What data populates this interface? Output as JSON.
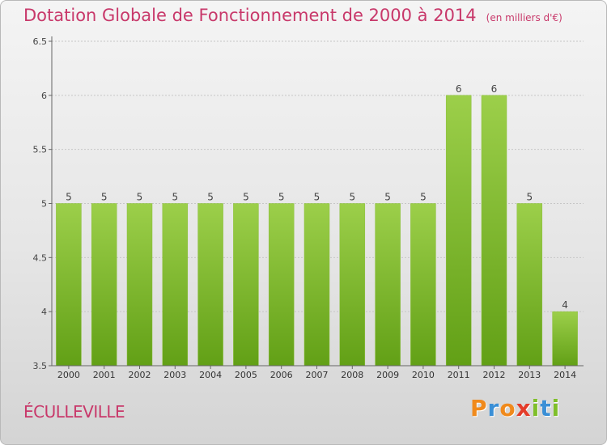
{
  "title": "Dotation Globale de Fonctionnement de 2000 à 2014",
  "subtitle": "(en milliers d'€)",
  "commune": "ÉCULLEVILLE",
  "logo": {
    "letters": [
      "P",
      "r",
      "o",
      "x",
      "i",
      "t",
      "i"
    ],
    "colors": [
      "#f08a1c",
      "#3a8fd6",
      "#f08a1c",
      "#e43c2a",
      "#7fbf2a",
      "#3a8fd6",
      "#7fbf2a"
    ]
  },
  "colors": {
    "bar_top": "#9ccf4a",
    "bar_bottom": "#62a016",
    "title": "#c8386a"
  },
  "chart_data": {
    "type": "bar",
    "title": "Dotation Globale de Fonctionnement de 2000 à 2014",
    "subtitle": "(en milliers d'€)",
    "categories": [
      "2000",
      "2001",
      "2002",
      "2003",
      "2004",
      "2005",
      "2006",
      "2007",
      "2008",
      "2009",
      "2010",
      "2011",
      "2012",
      "2013",
      "2014"
    ],
    "values": [
      5,
      5,
      5,
      5,
      5,
      5,
      5,
      5,
      5,
      5,
      5,
      6,
      6,
      5,
      4
    ],
    "labels": [
      "5",
      "5",
      "5",
      "5",
      "5",
      "5",
      "5",
      "5",
      "5",
      "5",
      "5",
      "6",
      "6",
      "5",
      "4"
    ],
    "ylim": [
      3.5,
      6.5
    ],
    "yticks": [
      "3.5",
      "4",
      "4.5",
      "5",
      "5.5",
      "6",
      "6.5"
    ],
    "grid": true,
    "legend": "none"
  }
}
